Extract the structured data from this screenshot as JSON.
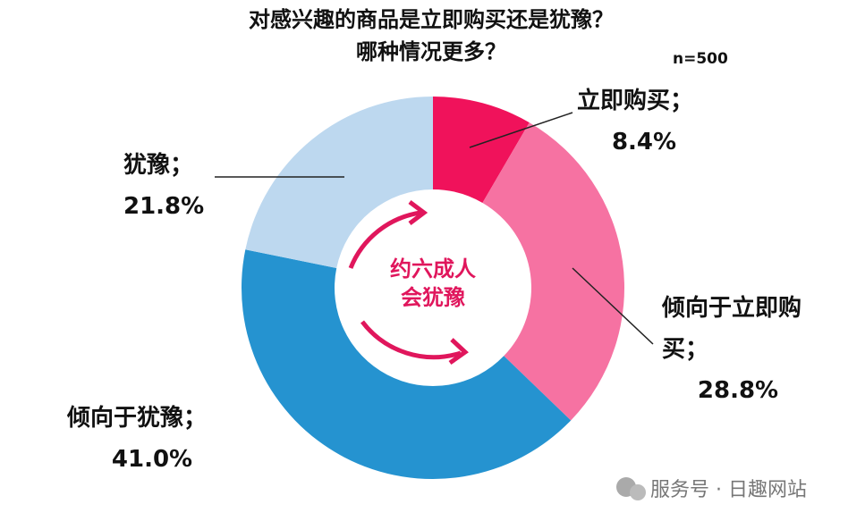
{
  "chart_data": {
    "type": "donut",
    "title": "对感兴趣的商品是立即购买还是犹豫？哪种情况更多？",
    "subtitle": "n=500",
    "categories": [
      "立即购买；",
      "倾向于立即购买；",
      "倾向于犹豫；",
      "犹豫；"
    ],
    "values": [
      8.4,
      28.8,
      41.0,
      21.8
    ],
    "value_labels": [
      "8.4%",
      "28.8%",
      "41.0%",
      "21.8%"
    ],
    "colors": [
      "#f0125b",
      "#f672a2",
      "#2593d0",
      "#bdd8ef"
    ],
    "center_text": [
      "约六成人",
      "会犹豫"
    ],
    "watermark": "服务号 · 日趣网站"
  }
}
